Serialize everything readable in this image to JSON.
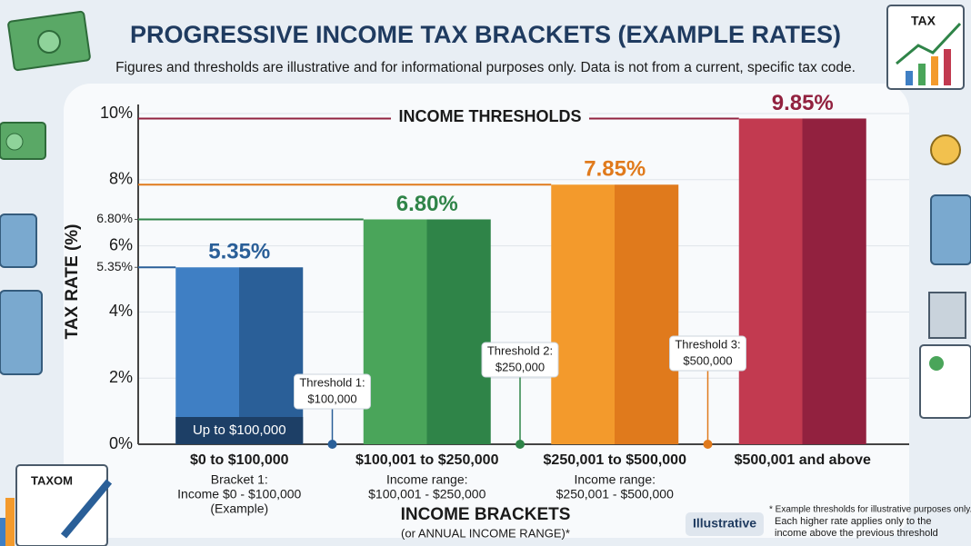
{
  "chart_data": {
    "type": "bar",
    "title": "PROGRESSIVE INCOME TAX BRACKETS (EXAMPLE RATES)",
    "subtitle": "Figures and thresholds are illustrative and for informational purposes only. Data is not from a current, specific tax code.",
    "y_label": "TAX RATE (%)",
    "x_label": "INCOME BRACKETS",
    "x_sublabel": "(or ANNUAL INCOME RANGE)*",
    "annotation": "INCOME THRESHOLDS",
    "bar_note": "Up to $100,000",
    "categories": [
      "$0 to $100,000",
      "$100,001 to $250,000",
      "$250,001 to $500,000",
      "$500,001 and above"
    ],
    "category_notes": [
      [
        "Bracket 1:",
        "Income $0 - $100,000",
        "(Example)"
      ],
      [
        "Income range:",
        "$100,001 - $250,000"
      ],
      [
        "Income range:",
        "$250,001 - $500,000"
      ],
      []
    ],
    "values": [
      5.35,
      6.8,
      7.85,
      9.85
    ],
    "value_labels": [
      "5.35%",
      "6.80%",
      "7.85%",
      "9.85%"
    ],
    "colors": [
      "#3f7fc4",
      "#4aa55a",
      "#f39a2c",
      "#c23a50"
    ],
    "shades": [
      "#2a5f98",
      "#2f8448",
      "#e07a1c",
      "#92213f"
    ],
    "label_colors": [
      "#2a5f98",
      "#2f8448",
      "#e07a1c",
      "#92213f"
    ],
    "thresholds": [
      [
        "Threshold 1:",
        "$100,000"
      ],
      [
        "Threshold 2:",
        "$250,000"
      ],
      [
        "Threshold 3:",
        "$500,000"
      ]
    ],
    "ylim": [
      0,
      10
    ],
    "yticks": [
      {
        "value": 0,
        "label": "0%"
      },
      {
        "value": 2,
        "label": "2%"
      },
      {
        "value": 4,
        "label": "4%"
      },
      {
        "value": 6,
        "label": "6%"
      },
      {
        "value": 8,
        "label": "8%"
      },
      {
        "value": 10,
        "label": "10%"
      }
    ],
    "yticks_minor": [
      {
        "value": 5.35,
        "label": "5.35%"
      },
      {
        "value": 6.8,
        "label": "6.80%"
      }
    ],
    "grid": true,
    "badge": "Illustrative",
    "footnote": [
      "* Example thresholds for illustrative purposes only.",
      "Each higher rate applies only to the",
      "income above the previous threshold"
    ],
    "decor_texts": [
      "TAX",
      "TAXOM"
    ]
  }
}
